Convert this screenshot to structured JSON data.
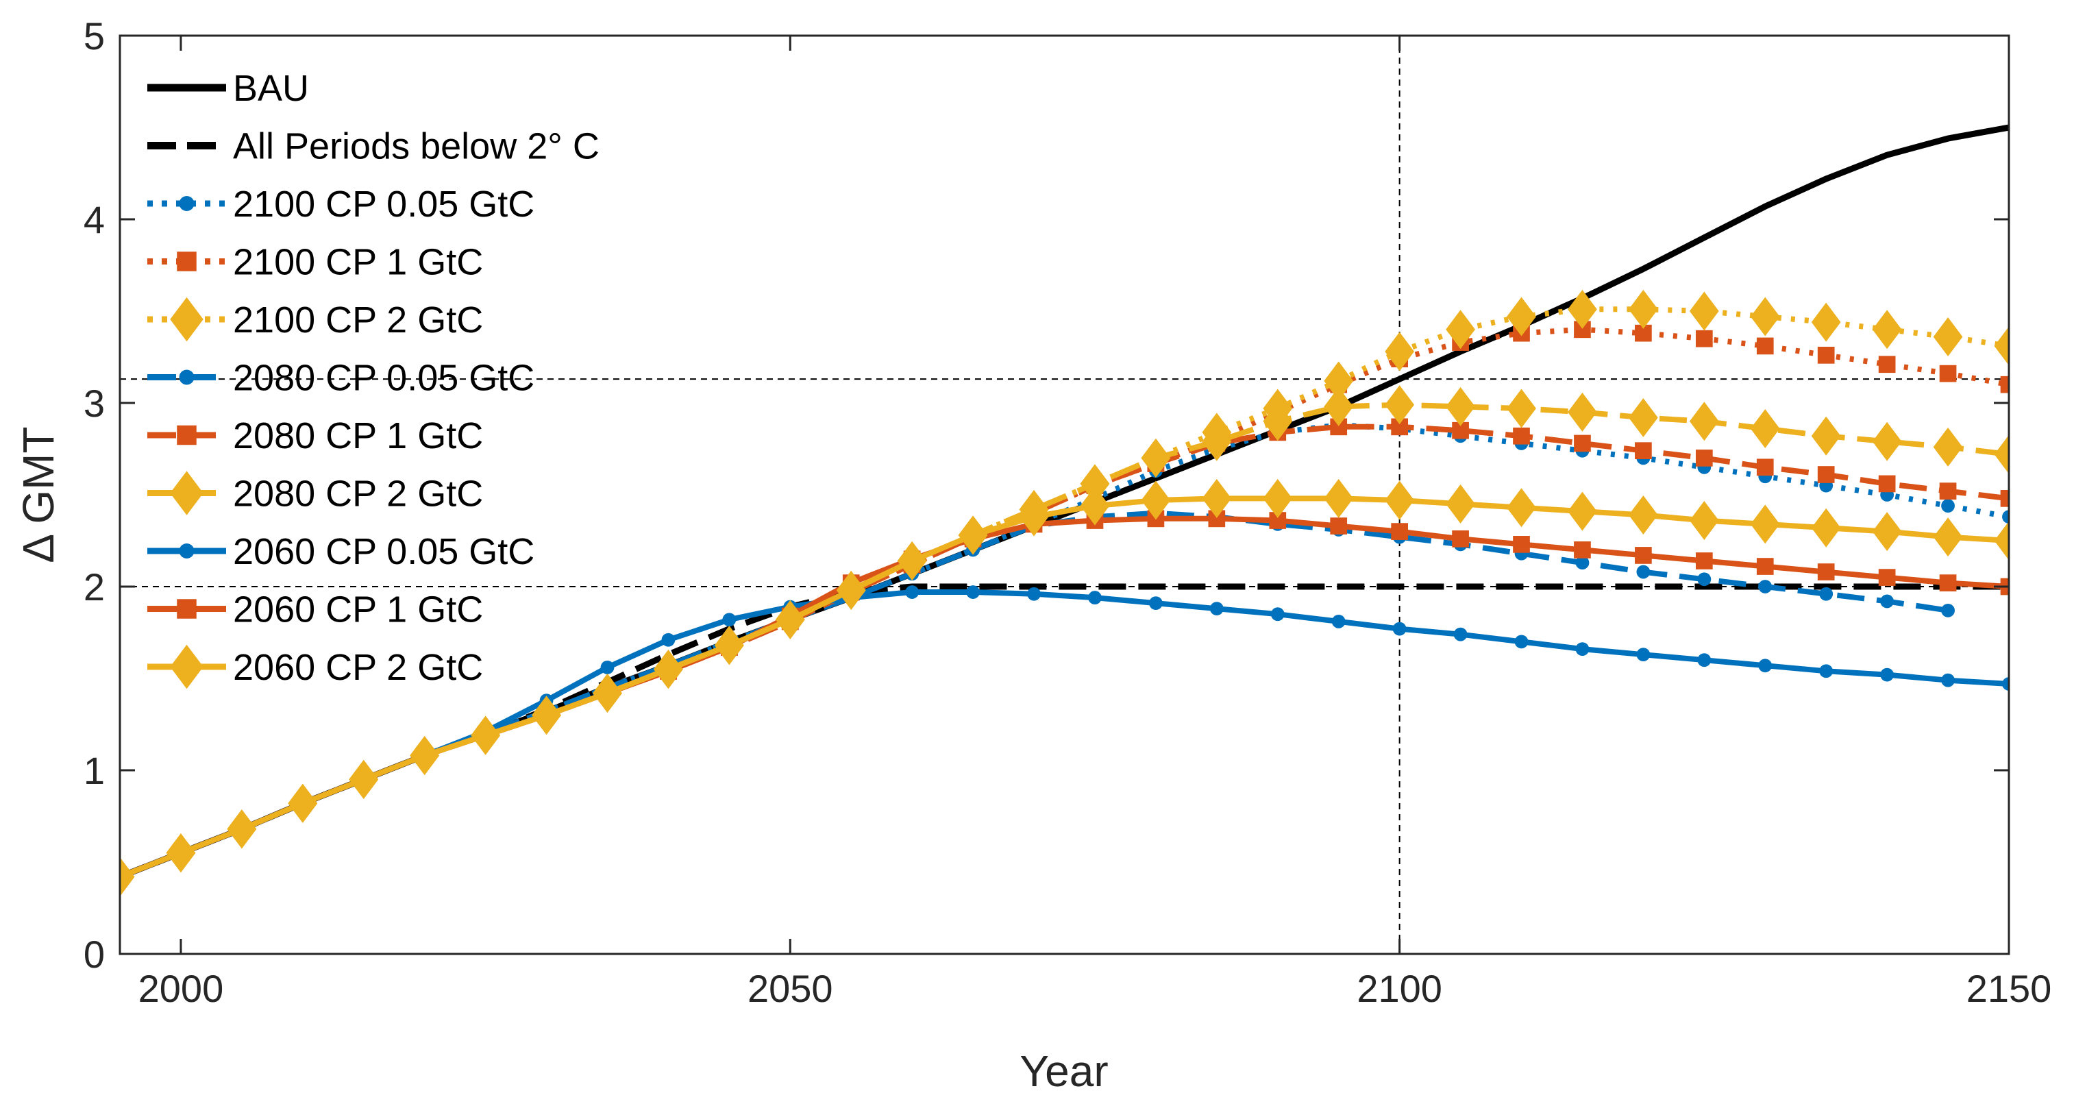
{
  "chart_data": {
    "type": "line",
    "title": "",
    "xlabel": "Year",
    "ylabel": "Δ GMT",
    "xlim": [
      1995,
      2150
    ],
    "ylim": [
      0,
      5
    ],
    "xticks": [
      2000,
      2050,
      2100,
      2150
    ],
    "xtick_labels": [
      "2000",
      "2050",
      "2100",
      "2150"
    ],
    "yticks": [
      0,
      1,
      2,
      3,
      4,
      5
    ],
    "ytick_labels": [
      "0",
      "1",
      "2",
      "3",
      "4",
      "5"
    ],
    "grid": false,
    "legend_position": "top-left",
    "reference_lines": [
      {
        "orientation": "horizontal",
        "value": 2.0
      },
      {
        "orientation": "horizontal",
        "value": 3.13
      },
      {
        "orientation": "vertical",
        "value": 2100
      }
    ],
    "series": [
      {
        "name": "BAU",
        "color": "#000000",
        "style": "solid",
        "marker": "none",
        "x": [
          1995,
          2000,
          2005,
          2010,
          2015,
          2020,
          2025,
          2030,
          2035,
          2040,
          2045,
          2050,
          2055,
          2060,
          2065,
          2070,
          2075,
          2080,
          2085,
          2090,
          2095,
          2100,
          2105,
          2110,
          2115,
          2120,
          2125,
          2130,
          2135,
          2140,
          2145,
          2150
        ],
        "y": [
          0.42,
          0.55,
          0.68,
          0.82,
          0.95,
          1.08,
          1.2,
          1.32,
          1.45,
          1.57,
          1.7,
          1.82,
          1.94,
          2.07,
          2.2,
          2.33,
          2.46,
          2.59,
          2.72,
          2.85,
          2.98,
          3.13,
          3.28,
          3.42,
          3.57,
          3.73,
          3.9,
          4.07,
          4.22,
          4.35,
          4.44,
          4.5
        ]
      },
      {
        "name": "All Periods below 2° C",
        "color": "#000000",
        "style": "dashed",
        "marker": "none",
        "x": [
          1995,
          2000,
          2005,
          2010,
          2015,
          2020,
          2025,
          2030,
          2035,
          2040,
          2045,
          2050,
          2055,
          2060,
          2065,
          2070,
          2075,
          2080,
          2090,
          2100,
          2110,
          2120,
          2130,
          2140,
          2150
        ],
        "y": [
          0.42,
          0.55,
          0.68,
          0.82,
          0.95,
          1.08,
          1.2,
          1.33,
          1.48,
          1.63,
          1.77,
          1.89,
          1.97,
          2.0,
          2.0,
          2.0,
          2.0,
          2.0,
          2.0,
          2.0,
          2.0,
          2.0,
          2.0,
          2.0,
          2.0
        ]
      },
      {
        "name": "2100 CP 0.05 GtC",
        "color": "#0072BD",
        "style": "dotted",
        "marker": "circle",
        "x": [
          1995,
          2000,
          2005,
          2010,
          2015,
          2020,
          2025,
          2030,
          2035,
          2040,
          2045,
          2050,
          2055,
          2060,
          2065,
          2070,
          2075,
          2080,
          2085,
          2090,
          2095,
          2100,
          2105,
          2110,
          2115,
          2120,
          2125,
          2130,
          2135,
          2140,
          2145,
          2150
        ],
        "y": [
          0.42,
          0.55,
          0.68,
          0.82,
          0.95,
          1.08,
          1.2,
          1.32,
          1.45,
          1.57,
          1.7,
          1.82,
          1.94,
          2.07,
          2.2,
          2.34,
          2.48,
          2.63,
          2.75,
          2.84,
          2.88,
          2.86,
          2.82,
          2.78,
          2.74,
          2.7,
          2.65,
          2.6,
          2.55,
          2.5,
          2.44,
          2.38
        ]
      },
      {
        "name": "2100 CP 1 GtC",
        "color": "#D95319",
        "style": "dotted",
        "marker": "square",
        "x": [
          1995,
          2000,
          2005,
          2010,
          2015,
          2020,
          2025,
          2030,
          2035,
          2040,
          2045,
          2050,
          2055,
          2060,
          2065,
          2070,
          2075,
          2080,
          2085,
          2090,
          2095,
          2100,
          2105,
          2110,
          2115,
          2120,
          2125,
          2130,
          2135,
          2140,
          2145,
          2150
        ],
        "y": [
          0.42,
          0.55,
          0.68,
          0.82,
          0.95,
          1.08,
          1.19,
          1.3,
          1.42,
          1.54,
          1.67,
          1.81,
          1.97,
          2.12,
          2.27,
          2.4,
          2.55,
          2.67,
          2.8,
          2.95,
          3.1,
          3.24,
          3.33,
          3.38,
          3.4,
          3.38,
          3.35,
          3.31,
          3.26,
          3.21,
          3.16,
          3.1
        ]
      },
      {
        "name": "2100 CP 2 GtC",
        "color": "#EDB120",
        "style": "dotted",
        "marker": "diamond",
        "x": [
          1995,
          2000,
          2005,
          2010,
          2015,
          2020,
          2025,
          2030,
          2035,
          2040,
          2045,
          2050,
          2055,
          2060,
          2065,
          2070,
          2075,
          2080,
          2085,
          2090,
          2095,
          2100,
          2105,
          2110,
          2115,
          2120,
          2125,
          2130,
          2135,
          2140,
          2145,
          2150
        ],
        "y": [
          0.42,
          0.55,
          0.68,
          0.82,
          0.95,
          1.08,
          1.19,
          1.3,
          1.42,
          1.55,
          1.68,
          1.82,
          1.98,
          2.14,
          2.28,
          2.42,
          2.56,
          2.7,
          2.84,
          2.97,
          3.12,
          3.28,
          3.4,
          3.47,
          3.51,
          3.51,
          3.5,
          3.47,
          3.44,
          3.4,
          3.36,
          3.31
        ]
      },
      {
        "name": "2080 CP 0.05 GtC",
        "color": "#0072BD",
        "style": "dashed",
        "marker": "circle",
        "x": [
          1995,
          2000,
          2005,
          2010,
          2015,
          2020,
          2025,
          2030,
          2035,
          2040,
          2045,
          2050,
          2055,
          2060,
          2065,
          2070,
          2075,
          2080,
          2085,
          2090,
          2095,
          2100,
          2105,
          2110,
          2115,
          2120,
          2125,
          2130,
          2135,
          2140,
          2145
        ],
        "y": [
          0.42,
          0.55,
          0.68,
          0.82,
          0.95,
          1.08,
          1.2,
          1.32,
          1.45,
          1.57,
          1.7,
          1.82,
          1.94,
          2.07,
          2.2,
          2.33,
          2.38,
          2.4,
          2.38,
          2.34,
          2.31,
          2.27,
          2.23,
          2.18,
          2.13,
          2.08,
          2.04,
          2.0,
          1.96,
          1.92,
          1.87
        ]
      },
      {
        "name": "2080 CP 1 GtC",
        "color": "#D95319",
        "style": "dashed",
        "marker": "square",
        "x": [
          1995,
          2000,
          2005,
          2010,
          2015,
          2020,
          2025,
          2030,
          2035,
          2040,
          2045,
          2050,
          2055,
          2060,
          2065,
          2070,
          2075,
          2080,
          2085,
          2090,
          2095,
          2100,
          2105,
          2110,
          2115,
          2120,
          2125,
          2130,
          2135,
          2140,
          2145,
          2150
        ],
        "y": [
          0.42,
          0.55,
          0.68,
          0.82,
          0.95,
          1.08,
          1.19,
          1.3,
          1.42,
          1.54,
          1.67,
          1.81,
          1.97,
          2.12,
          2.27,
          2.4,
          2.55,
          2.67,
          2.78,
          2.84,
          2.87,
          2.87,
          2.85,
          2.82,
          2.78,
          2.74,
          2.7,
          2.65,
          2.61,
          2.56,
          2.52,
          2.48
        ]
      },
      {
        "name": "2080 CP 2 GtC",
        "color": "#EDB120",
        "style": "dashed",
        "marker": "diamond",
        "x": [
          1995,
          2000,
          2005,
          2010,
          2015,
          2020,
          2025,
          2030,
          2035,
          2040,
          2045,
          2050,
          2055,
          2060,
          2065,
          2070,
          2075,
          2080,
          2085,
          2090,
          2095,
          2100,
          2105,
          2110,
          2115,
          2120,
          2125,
          2130,
          2135,
          2140,
          2145,
          2150
        ],
        "y": [
          0.42,
          0.55,
          0.68,
          0.82,
          0.95,
          1.08,
          1.19,
          1.3,
          1.42,
          1.55,
          1.68,
          1.82,
          1.98,
          2.14,
          2.28,
          2.42,
          2.56,
          2.7,
          2.79,
          2.9,
          2.98,
          2.99,
          2.98,
          2.97,
          2.95,
          2.92,
          2.9,
          2.86,
          2.82,
          2.79,
          2.76,
          2.72
        ]
      },
      {
        "name": "2060 CP 0.05 GtC",
        "color": "#0072BD",
        "style": "solid",
        "marker": "circle",
        "x": [
          1995,
          2000,
          2005,
          2010,
          2015,
          2020,
          2025,
          2030,
          2035,
          2040,
          2045,
          2050,
          2055,
          2060,
          2065,
          2070,
          2075,
          2080,
          2085,
          2090,
          2095,
          2100,
          2105,
          2110,
          2115,
          2120,
          2125,
          2130,
          2135,
          2140,
          2145,
          2150
        ],
        "y": [
          0.42,
          0.55,
          0.68,
          0.82,
          0.95,
          1.08,
          1.21,
          1.38,
          1.56,
          1.71,
          1.82,
          1.89,
          1.94,
          1.97,
          1.97,
          1.96,
          1.94,
          1.91,
          1.88,
          1.85,
          1.81,
          1.77,
          1.74,
          1.7,
          1.66,
          1.63,
          1.6,
          1.57,
          1.54,
          1.52,
          1.49,
          1.47
        ]
      },
      {
        "name": "2060 CP 1 GtC",
        "color": "#D95319",
        "style": "solid",
        "marker": "square",
        "x": [
          1995,
          2000,
          2005,
          2010,
          2015,
          2020,
          2025,
          2030,
          2035,
          2040,
          2045,
          2050,
          2055,
          2060,
          2065,
          2070,
          2075,
          2080,
          2085,
          2090,
          2095,
          2100,
          2105,
          2110,
          2115,
          2120,
          2125,
          2130,
          2135,
          2140,
          2145,
          2150
        ],
        "y": [
          0.42,
          0.55,
          0.68,
          0.82,
          0.95,
          1.08,
          1.19,
          1.3,
          1.42,
          1.54,
          1.67,
          1.84,
          2.02,
          2.15,
          2.26,
          2.34,
          2.36,
          2.37,
          2.37,
          2.36,
          2.33,
          2.3,
          2.26,
          2.23,
          2.2,
          2.17,
          2.14,
          2.11,
          2.08,
          2.05,
          2.02,
          2.0
        ]
      },
      {
        "name": "2060 CP 2 GtC",
        "color": "#EDB120",
        "style": "solid",
        "marker": "diamond",
        "x": [
          1995,
          2000,
          2005,
          2010,
          2015,
          2020,
          2025,
          2030,
          2035,
          2040,
          2045,
          2050,
          2055,
          2060,
          2065,
          2070,
          2075,
          2080,
          2085,
          2090,
          2095,
          2100,
          2105,
          2110,
          2115,
          2120,
          2125,
          2130,
          2135,
          2140,
          2145,
          2150
        ],
        "y": [
          0.42,
          0.55,
          0.68,
          0.82,
          0.95,
          1.08,
          1.19,
          1.3,
          1.42,
          1.55,
          1.68,
          1.82,
          1.98,
          2.14,
          2.28,
          2.38,
          2.44,
          2.47,
          2.48,
          2.48,
          2.48,
          2.47,
          2.45,
          2.43,
          2.41,
          2.39,
          2.36,
          2.34,
          2.32,
          2.3,
          2.27,
          2.25
        ]
      }
    ]
  }
}
